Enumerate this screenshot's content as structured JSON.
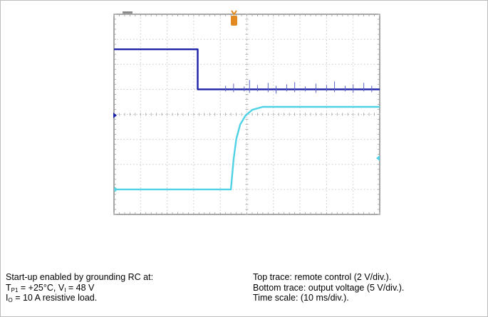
{
  "chart_data": {
    "type": "line",
    "title": "",
    "xlabel": "",
    "ylabel": "",
    "divisions": {
      "x": 10,
      "y": 8
    },
    "grid": true,
    "series": [
      {
        "color": "#1b22a8",
        "points": [
          [
            0,
            6.6
          ],
          [
            3.15,
            6.6
          ],
          [
            3.15,
            5.0
          ],
          [
            10,
            5.0
          ]
        ]
      },
      {
        "color": "#4fd2e6",
        "points": [
          [
            0,
            1.0
          ],
          [
            4.4,
            1.0
          ],
          [
            4.5,
            2.2
          ],
          [
            4.6,
            3.0
          ],
          [
            4.75,
            3.6
          ],
          [
            4.95,
            3.95
          ],
          [
            5.2,
            4.18
          ],
          [
            5.6,
            4.3
          ],
          [
            10,
            4.3
          ]
        ]
      }
    ]
  },
  "captions": {
    "left": {
      "l1": "Start-up enabled by grounding RC at:",
      "l2_a": "T",
      "l2_sub1": "P1",
      "l2_b": " = +25°C, V",
      "l2_sub2": "I",
      "l2_c": " = 48 V",
      "l3_a": "I",
      "l3_sub": "O",
      "l3_b": " = 10 A resistive load."
    },
    "right": {
      "l1": "Top trace: remote control (2 V/div.).",
      "l2": "Bottom trace: output voltage (5 V/div.).",
      "l3": "Time scale: (10 ms/div.)."
    }
  }
}
